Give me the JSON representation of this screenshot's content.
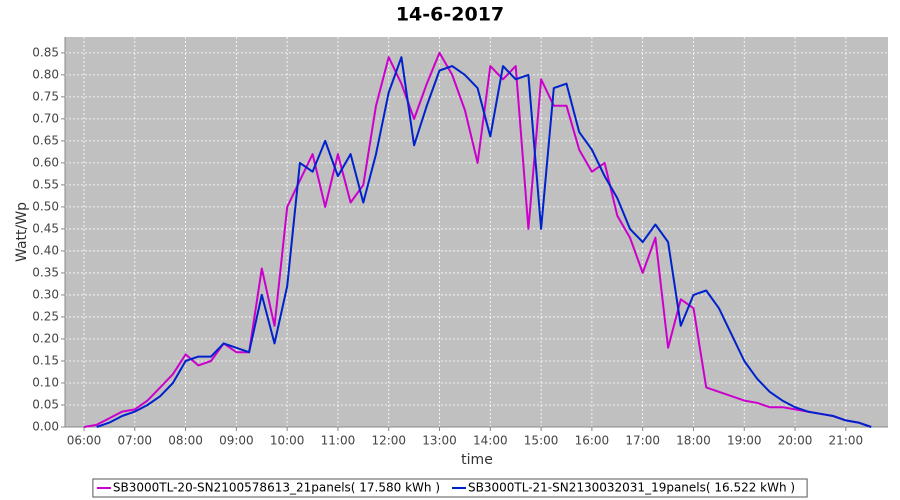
{
  "chart_data": {
    "type": "line",
    "title": "14-6-2017",
    "x_label": "time",
    "y_label": "Watt/Wp",
    "x": [
      6,
      6.25,
      6.5,
      6.75,
      7,
      7.25,
      7.5,
      7.75,
      8,
      8.25,
      8.5,
      8.75,
      9,
      9.25,
      9.5,
      9.75,
      10,
      10.25,
      10.5,
      10.75,
      11,
      11.25,
      11.5,
      11.75,
      12,
      12.25,
      12.5,
      12.75,
      13,
      13.25,
      13.5,
      13.75,
      14,
      14.25,
      14.5,
      14.75,
      15,
      15.25,
      15.5,
      15.75,
      16,
      16.25,
      16.5,
      16.75,
      17,
      17.25,
      17.5,
      17.75,
      18,
      18.25,
      18.5,
      18.75,
      19,
      19.25,
      19.5,
      19.75,
      20,
      20.25,
      20.5,
      20.75,
      21,
      21.25,
      21.5
    ],
    "series": [
      {
        "name": "SB3000TL-20-SN2100578613_21panels( 17.580 kWh )",
        "color": "#cc00cc",
        "values": [
          0,
          0.005,
          0.02,
          0.035,
          0.04,
          0.06,
          0.09,
          0.12,
          0.165,
          0.14,
          0.15,
          0.19,
          0.17,
          0.17,
          0.36,
          0.23,
          0.5,
          0.56,
          0.62,
          0.5,
          0.62,
          0.51,
          0.55,
          0.73,
          0.84,
          0.78,
          0.7,
          0.78,
          0.85,
          0.8,
          0.72,
          0.6,
          0.82,
          0.79,
          0.82,
          0.45,
          0.79,
          0.73,
          0.73,
          0.63,
          0.58,
          0.6,
          0.48,
          0.43,
          0.35,
          0.43,
          0.18,
          0.29,
          0.27,
          0.09,
          0.08,
          0.07,
          0.06,
          0.055,
          0.045,
          0.045,
          0.04,
          0.035,
          0.03,
          0.025,
          0.015,
          0.01,
          0
        ]
      },
      {
        "name": "SB3000TL-21-SN2130032031_19panels( 16.522 kWh )",
        "color": "#0022cc",
        "values": [
          null,
          0,
          0.01,
          0.025,
          0.035,
          0.05,
          0.07,
          0.1,
          0.15,
          0.16,
          0.16,
          0.19,
          0.18,
          0.17,
          0.3,
          0.19,
          0.32,
          0.6,
          0.58,
          0.65,
          0.57,
          0.62,
          0.51,
          0.62,
          0.76,
          0.84,
          0.64,
          0.73,
          0.81,
          0.82,
          0.8,
          0.77,
          0.66,
          0.82,
          0.79,
          0.8,
          0.45,
          0.77,
          0.78,
          0.67,
          0.63,
          0.57,
          0.52,
          0.45,
          0.42,
          0.46,
          0.42,
          0.23,
          0.3,
          0.31,
          0.27,
          0.21,
          0.15,
          0.11,
          0.08,
          0.06,
          0.045,
          0.035,
          0.03,
          0.025,
          0.015,
          0.01,
          0
        ]
      }
    ],
    "xlim": [
      5.626,
      21.83
    ],
    "xticks": [
      {
        "value": 6,
        "label": "06:00"
      },
      {
        "value": 7,
        "label": "07:00"
      },
      {
        "value": 8,
        "label": "08:00"
      },
      {
        "value": 9,
        "label": "09:00"
      },
      {
        "value": 10,
        "label": "10:00"
      },
      {
        "value": 11,
        "label": "11:00"
      },
      {
        "value": 12,
        "label": "12:00"
      },
      {
        "value": 13,
        "label": "13:00"
      },
      {
        "value": 14,
        "label": "14:00"
      },
      {
        "value": 15,
        "label": "15:00"
      },
      {
        "value": 16,
        "label": "16:00"
      },
      {
        "value": 17,
        "label": "17:00"
      },
      {
        "value": 18,
        "label": "18:00"
      },
      {
        "value": 19,
        "label": "19:00"
      },
      {
        "value": 20,
        "label": "20:00"
      },
      {
        "value": 21,
        "label": "21:00"
      }
    ],
    "ylim": [
      0,
      0.886
    ],
    "yticks": [
      {
        "value": 0,
        "label": "0.00"
      },
      0.05,
      {
        "value": 0.1,
        "label": "0.10"
      },
      0.15,
      {
        "value": 0.2,
        "label": "0.20"
      },
      0.25,
      {
        "value": 0.3,
        "label": "0.30"
      },
      0.35,
      {
        "value": 0.4,
        "label": "0.40"
      },
      0.45,
      {
        "value": 0.5,
        "label": "0.50"
      },
      0.55,
      {
        "value": 0.6,
        "label": "0.60"
      },
      0.65,
      {
        "value": 0.7,
        "label": "0.70"
      },
      0.75,
      {
        "value": 0.8,
        "label": "0.80"
      },
      0.85
    ],
    "grid": true,
    "legend": "bottom"
  }
}
